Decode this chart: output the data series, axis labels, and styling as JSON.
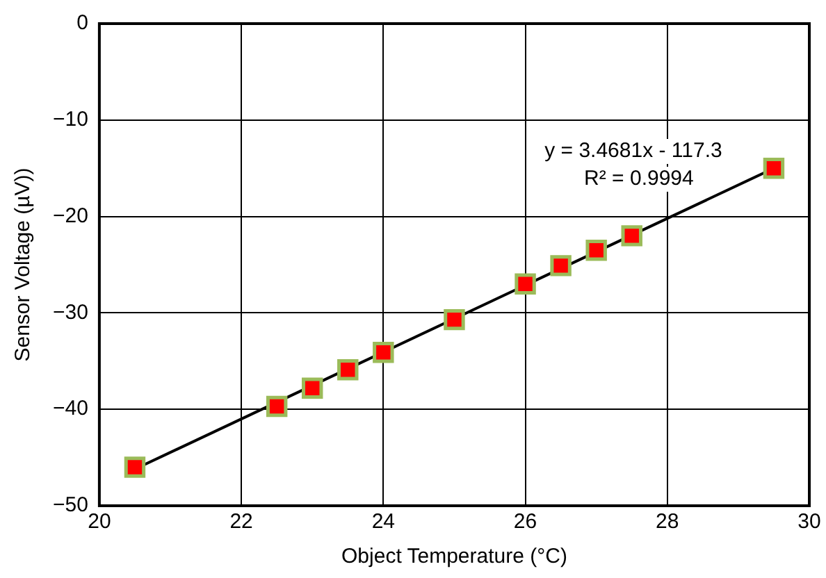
{
  "chart_data": {
    "type": "scatter",
    "xlabel": "Object Temperature (°C)",
    "ylabel": "Sensor Voltage (µV))",
    "xlim": [
      20,
      30
    ],
    "xticks": [
      20,
      22,
      24,
      26,
      28,
      30
    ],
    "ylim": [
      -50,
      0
    ],
    "yticks": [
      {
        "value": 0,
        "label": "0"
      },
      {
        "value": -10,
        "label": "−10"
      },
      {
        "value": -20,
        "label": "−20"
      },
      {
        "value": -30,
        "label": "−30"
      },
      {
        "value": -40,
        "label": "−40"
      },
      {
        "value": -50,
        "label": "−50"
      }
    ],
    "grid": true,
    "legend": false,
    "marker": "square",
    "series": [
      {
        "color": "#ff0000",
        "x": [
          20.5,
          22.5,
          23,
          23.5,
          24,
          25,
          26,
          26.5,
          27,
          27.5,
          29.5
        ],
        "values": [
          -46.0,
          -39.7,
          -37.8,
          -35.9,
          -34.1,
          -30.7,
          -27.0,
          -25.1,
          -23.5,
          -22.0,
          -15.0
        ]
      },
      {
        "type": "line",
        "color": "#000000",
        "x": [
          20.5,
          29.5
        ],
        "values": [
          -46.2,
          -15.0
        ],
        "marker": "none",
        "line_style": "solid"
      }
    ],
    "annotations": [
      "y = 3.4681x - 117.3",
      "R² = 0.9994"
    ]
  }
}
